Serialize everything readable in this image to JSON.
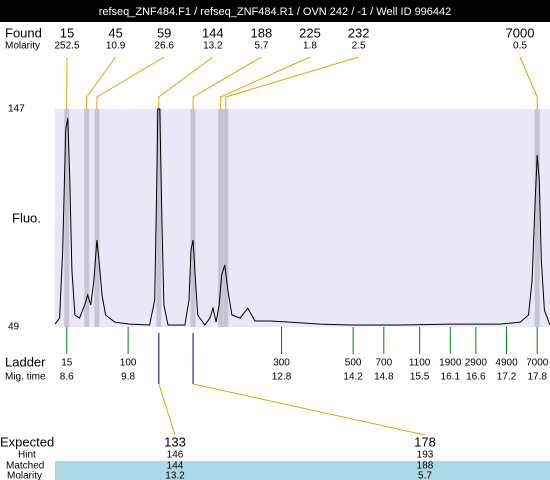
{
  "chart_data": {
    "type": "line",
    "title": "refseq_ZNF484.F1 / refseq_ZNF484.R1 / OVN 242 / -1 / Well ID 996442",
    "ylabel": "Fluo.",
    "ylim": [
      49,
      147
    ],
    "yticks": [
      49,
      147
    ],
    "xlim": [
      8.37,
      18.05
    ],
    "color": "#000000",
    "x": [
      8.37,
      8.46,
      8.52,
      8.58,
      8.62,
      8.66,
      8.7,
      8.76,
      8.85,
      8.95,
      9.01,
      9.07,
      9.13,
      9.19,
      9.23,
      9.29,
      9.36,
      9.54,
      9.83,
      10.22,
      10.32,
      10.36,
      10.38,
      10.42,
      10.46,
      10.5,
      10.58,
      10.91,
      10.99,
      11.03,
      11.07,
      11.11,
      11.16,
      11.3,
      11.4,
      11.46,
      11.52,
      11.58,
      11.63,
      11.69,
      11.75,
      11.83,
      11.99,
      12.14,
      12.28,
      12.57,
      12.96,
      13.55,
      14.14,
      15.12,
      16.1,
      17.08,
      17.47,
      17.63,
      17.7,
      17.76,
      17.8,
      17.84,
      17.88,
      17.94,
      18.05
    ],
    "values": [
      50.3,
      53,
      83.6,
      137.6,
      143,
      115,
      74.6,
      54.4,
      53,
      58.9,
      63.4,
      58.9,
      70.1,
      88.1,
      79,
      63.4,
      54.4,
      51.2,
      50.3,
      49.9,
      61.1,
      115,
      147,
      147,
      97.1,
      58.9,
      49.9,
      49.9,
      61.1,
      83.6,
      88.1,
      72.4,
      54.4,
      49.9,
      53,
      57.5,
      51.2,
      58.9,
      72.4,
      76.9,
      65.6,
      54.4,
      53,
      57.5,
      51.7,
      51.7,
      51.2,
      50.3,
      49.9,
      49.9,
      50.3,
      50.3,
      51.2,
      54.4,
      70.1,
      106.1,
      126.3,
      115,
      79,
      56.6,
      49.9
    ],
    "found": {
      "label": "Found",
      "molarity_label": "Molarity",
      "sizes": [
        15,
        45,
        59,
        144,
        188,
        225,
        232,
        7000
      ],
      "molarity": [
        252.5,
        10.9,
        26.6,
        13.2,
        5.7,
        1.8,
        2.5,
        0.5
      ],
      "times": [
        8.6,
        8.99,
        9.19,
        10.4,
        11.07,
        11.61,
        11.71,
        17.8
      ]
    },
    "ladder": {
      "label": "Ladder",
      "time_label": "Mig. time",
      "sizes": [
        15,
        100,
        300,
        500,
        700,
        1100,
        1900,
        2900,
        4900,
        7000
      ],
      "times": [
        8.6,
        9.8,
        12.8,
        14.2,
        14.8,
        15.5,
        16.1,
        16.6,
        17.2,
        17.8
      ]
    },
    "expected": {
      "label": "Expected",
      "hint_label": "Hint",
      "matched_label": "Matched",
      "molarity_label": "Molarity",
      "sizes": [
        133,
        178
      ],
      "hint": [
        146,
        193
      ],
      "matched": [
        144,
        188
      ],
      "molarity": [
        13.2,
        5.7
      ]
    }
  }
}
